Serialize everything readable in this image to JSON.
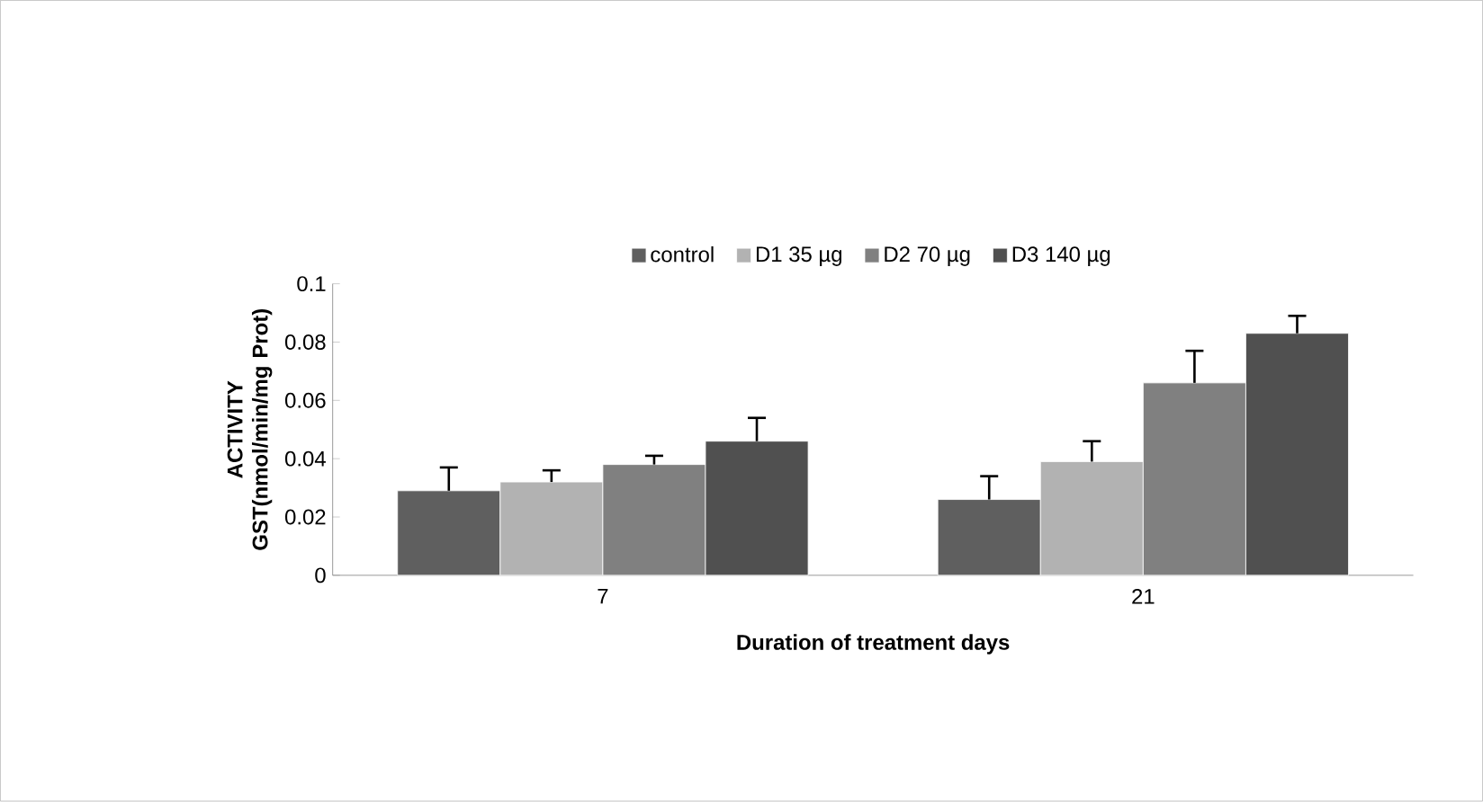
{
  "chart_data": {
    "type": "bar",
    "xlabel": "Duration of treatment days",
    "ylabel": "ACTIVITY  GST(nmol/min/mg Prot)",
    "categories": [
      "7",
      "21"
    ],
    "series": [
      {
        "name": "control",
        "color": "#5f5f5f",
        "values": [
          0.029,
          0.026
        ],
        "errors": [
          [
            0.029,
            0.037
          ],
          [
            0.026,
            0.034
          ]
        ]
      },
      {
        "name": "D1 35 µg",
        "color": "#b2b2b2",
        "values": [
          0.032,
          0.039
        ],
        "errors": [
          [
            0.032,
            0.036
          ],
          [
            0.039,
            0.046
          ]
        ]
      },
      {
        "name": "D2 70 µg",
        "color": "#808080",
        "values": [
          0.038,
          0.066
        ],
        "errors": [
          [
            0.038,
            0.041
          ],
          [
            0.066,
            0.077
          ]
        ]
      },
      {
        "name": "D3 140 µg",
        "color": "#505050",
        "values": [
          0.046,
          0.083
        ],
        "errors": [
          [
            0.046,
            0.054
          ],
          [
            0.083,
            0.089
          ]
        ]
      }
    ],
    "ylim": [
      0,
      0.1
    ],
    "yticks": [
      0,
      0.02,
      0.04,
      0.06,
      0.08,
      0.1
    ],
    "legend": "top",
    "grid": false
  }
}
